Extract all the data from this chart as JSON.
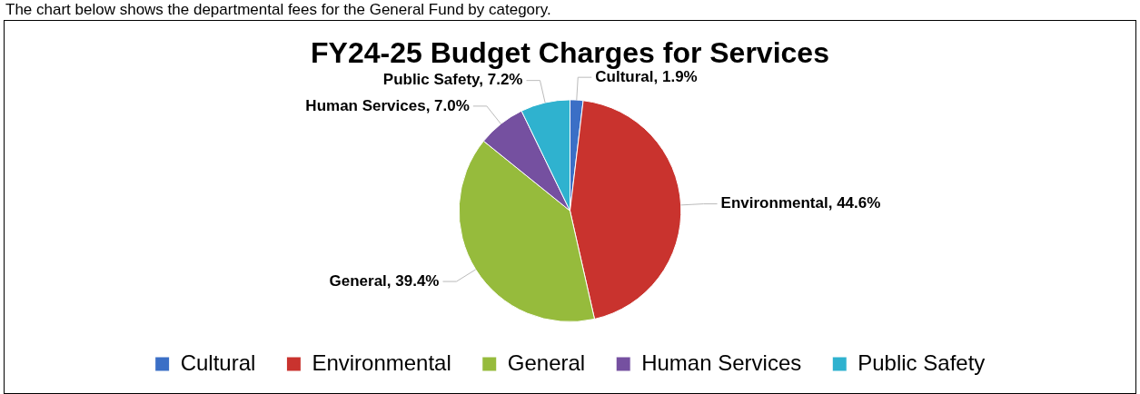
{
  "chart_data": {
    "type": "pie",
    "title": "FY24-25 Budget Charges for Services",
    "annotations": [
      "The chart below shows the departmental fees for the General Fund by category."
    ],
    "categories": [
      "Cultural",
      "Environmental",
      "General",
      "Human Services",
      "Public Safety"
    ],
    "values": [
      1.9,
      44.6,
      39.4,
      7.0,
      7.2
    ],
    "colors": [
      "#3b6fc6",
      "#c9332e",
      "#96bb3c",
      "#7550a0",
      "#2fb2cf"
    ],
    "value_labels": [
      "Cultural, 1.9%",
      "Environmental, 44.6%",
      "General, 39.4%",
      "Human Services, 7.0%",
      "Public Safety, 7.2%"
    ],
    "legend": "bottom"
  }
}
